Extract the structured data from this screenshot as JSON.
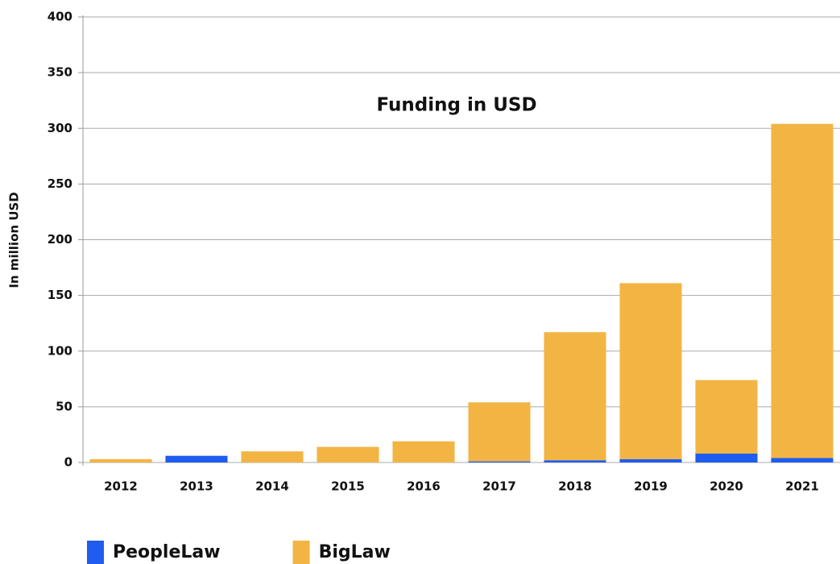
{
  "chart_data": {
    "type": "stacked_bar",
    "title": "Funding in USD",
    "y_label": "In million USD",
    "categories": [
      "2012",
      "2013",
      "2014",
      "2015",
      "2016",
      "2017",
      "2018",
      "2019",
      "2020",
      "2021"
    ],
    "series": [
      {
        "name": "PeopleLaw",
        "color": "#1f5cf0",
        "values": [
          0,
          6,
          0,
          0,
          0,
          1,
          2,
          3,
          8,
          4
        ]
      },
      {
        "name": "BigLaw",
        "color": "#f2b544",
        "values": [
          3,
          0,
          10,
          14,
          19,
          53,
          115,
          158,
          66,
          300
        ]
      }
    ],
    "ylim": [
      0,
      400
    ],
    "yticks": [
      0,
      50,
      100,
      150,
      200,
      250,
      300,
      350,
      400
    ],
    "grid": true,
    "legend": "bottom"
  }
}
